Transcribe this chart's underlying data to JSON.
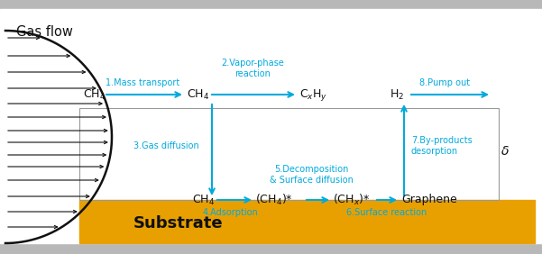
{
  "bg_color": "#CCCCCC",
  "main_bg": "#ffffff",
  "substrate_color": "#E8A000",
  "border_color": "#888888",
  "arrow_color": "#00AADD",
  "text_color_black": "#111111",
  "gas_flow_label": "Gas flow",
  "substrate_label": "Substrate",
  "delta_label": "δ",
  "labels": {
    "ch4_left": "CH$_4$",
    "ch4_mid": "CH$_4$",
    "cxhy": "C$_x$H$_y$",
    "h2": "H$_2$",
    "ch4_bot": "CH$_4$",
    "ch4s": "(CH$_4$)*",
    "chxs": "(CH$_x$)*",
    "graphene": "Graphene"
  },
  "step_labels": {
    "s1": "1.Mass transport",
    "s2": "2.Vapor-phase\nreaction",
    "s3": "3.Gas diffusion",
    "s4": "4.Adsorption",
    "s5": "5.Decomposition\n& Surface diffusion",
    "s6": "6.Surface reaction",
    "s7": "7.By-products\ndesorption",
    "s8": "8.Pump out"
  }
}
